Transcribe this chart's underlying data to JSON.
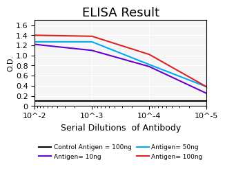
{
  "title": "ELISA Result",
  "ylabel": "O.D.",
  "xlabel": "Serial Dilutions  of Antibody",
  "x_values": [
    0.01,
    0.001,
    0.0001,
    1e-05
  ],
  "lines": [
    {
      "label": "Control Antigen = 100ng",
      "color": "black",
      "y": [
        0.1,
        0.1,
        0.1,
        0.1
      ]
    },
    {
      "label": "Antigen= 10ng",
      "color": "#6600cc",
      "y": [
        1.22,
        1.1,
        0.78,
        0.25
      ]
    },
    {
      "label": "Antigen= 50ng",
      "color": "#00aaee",
      "y": [
        1.27,
        1.27,
        0.82,
        0.38
      ]
    },
    {
      "label": "Antigen= 100ng",
      "color": "#dd2222",
      "y": [
        1.4,
        1.38,
        1.02,
        0.38
      ]
    }
  ],
  "ylim": [
    0,
    1.7
  ],
  "yticks": [
    0,
    0.2,
    0.4,
    0.6,
    0.8,
    1.0,
    1.2,
    1.4,
    1.6
  ],
  "bg_color": "#f5f5f5",
  "title_fontsize": 13,
  "label_fontsize": 8,
  "legend_fontsize": 6.5
}
